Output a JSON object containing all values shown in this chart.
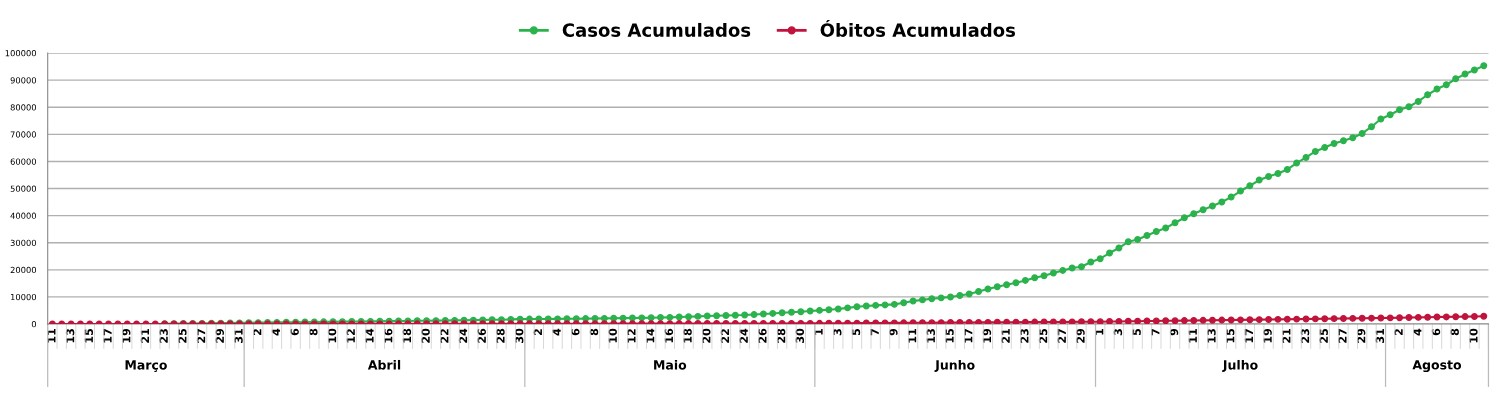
{
  "chart_data": {
    "type": "line",
    "categories": [
      "11",
      null,
      "13",
      null,
      "15",
      null,
      "17",
      null,
      "19",
      null,
      "21",
      null,
      "23",
      null,
      "25",
      null,
      "27",
      null,
      "29",
      null,
      "31",
      null,
      "2",
      null,
      "4",
      null,
      "6",
      null,
      "8",
      null,
      "10",
      null,
      "12",
      null,
      "14",
      null,
      "16",
      null,
      "18",
      null,
      "20",
      null,
      "22",
      null,
      "24",
      null,
      "26",
      null,
      "28",
      null,
      "30",
      null,
      "2",
      null,
      "4",
      null,
      "6",
      null,
      "8",
      null,
      "10",
      null,
      "12",
      null,
      "14",
      null,
      "16",
      null,
      "18",
      null,
      "20",
      null,
      "22",
      null,
      "24",
      null,
      "26",
      null,
      "28",
      null,
      "30",
      null,
      "1",
      null,
      "3",
      null,
      "5",
      null,
      "7",
      null,
      "9",
      null,
      "11",
      null,
      "13",
      null,
      "15",
      null,
      "17",
      null,
      "19",
      null,
      "21",
      null,
      "23",
      null,
      "25",
      null,
      "27",
      null,
      "29",
      null,
      "1",
      null,
      "3",
      null,
      "5",
      null,
      "7",
      null,
      "9",
      null,
      "11",
      null,
      "13",
      null,
      "15",
      null,
      "17",
      null,
      "19",
      null,
      "21",
      null,
      "23",
      null,
      "25",
      null,
      "27",
      null,
      "29",
      null,
      "31",
      null,
      "2",
      null,
      "4",
      null,
      "6",
      null,
      "8",
      null,
      "10",
      null
    ],
    "annotations": [
      "Março",
      "Abril",
      "Maio",
      "Junho",
      "Julho",
      "Agosto"
    ],
    "series": [
      {
        "name": "Casos Acumulados",
        "color": "#2bb24c",
        "values": [
          null,
          null,
          null,
          null,
          null,
          null,
          null,
          null,
          null,
          null,
          null,
          null,
          100,
          130,
          160,
          190,
          230,
          270,
          320,
          370,
          420,
          470,
          520,
          560,
          600,
          640,
          680,
          720,
          760,
          800,
          840,
          870,
          900,
          940,
          980,
          1020,
          1060,
          1100,
          1140,
          1180,
          1220,
          1260,
          1300,
          1340,
          1380,
          1440,
          1500,
          1550,
          1600,
          1700,
          1800,
          1820,
          1840,
          1870,
          1900,
          1930,
          1960,
          2000,
          2040,
          2080,
          2120,
          2160,
          2210,
          2270,
          2330,
          2390,
          2450,
          2560,
          2680,
          2810,
          2940,
          3030,
          3120,
          3210,
          3300,
          3480,
          3670,
          3910,
          4160,
          4340,
          4530,
          4780,
          5030,
          5280,
          5520,
          5950,
          6380,
          6620,
          6870,
          7050,
          7240,
          7850,
          8470,
          8900,
          9330,
          9640,
          9950,
          10500,
          11060,
          11980,
          12900,
          13760,
          14500,
          15240,
          16090,
          17080,
          17820,
          18820,
          19780,
          20660,
          21140,
          22880,
          24100,
          26200,
          28040,
          30370,
          31220,
          32690,
          34170,
          35420,
          37380,
          39220,
          40700,
          42180,
          43540,
          45020,
          46860,
          49080,
          51030,
          53140,
          54460,
          55570,
          57050,
          59410,
          61470,
          63690,
          65170,
          66640,
          67640,
          68740,
          70330,
          72800,
          75640,
          77230,
          79080,
          80180,
          82140,
          84610,
          86720,
          88300,
          90520,
          92250,
          93730,
          95310
        ]
      },
      {
        "name": "Óbitos Acumulados",
        "color": "#c0143c",
        "values": [
          0,
          0,
          0,
          0,
          0,
          0,
          0,
          0,
          0,
          1,
          1,
          1,
          2,
          2,
          3,
          4,
          5,
          6,
          8,
          10,
          12,
          14,
          16,
          19,
          22,
          25,
          28,
          31,
          34,
          37,
          40,
          43,
          46,
          49,
          52,
          55,
          58,
          61,
          64,
          67,
          70,
          73,
          76,
          79,
          82,
          85,
          88,
          91,
          94,
          97,
          100,
          103,
          106,
          109,
          112,
          115,
          118,
          121,
          124,
          127,
          130,
          133,
          136,
          140,
          144,
          148,
          152,
          156,
          160,
          165,
          170,
          175,
          180,
          185,
          190,
          196,
          202,
          208,
          214,
          220,
          227,
          234,
          250,
          270,
          290,
          310,
          330,
          350,
          370,
          390,
          410,
          430,
          450,
          470,
          490,
          510,
          530,
          550,
          570,
          590,
          610,
          630,
          650,
          670,
          690,
          710,
          730,
          750,
          770,
          790,
          810,
          830,
          860,
          905,
          950,
          995,
          1040,
          1085,
          1130,
          1175,
          1220,
          1265,
          1310,
          1355,
          1400,
          1445,
          1490,
          1535,
          1580,
          1625,
          1670,
          1715,
          1760,
          1805,
          1850,
          1895,
          1940,
          1985,
          2030,
          2075,
          2120,
          2160,
          2200,
          2260,
          2320,
          2380,
          2440,
          2500,
          2560,
          2620,
          2680,
          2740,
          2800,
          2850
        ]
      }
    ],
    "ylim": [
      0,
      100000
    ],
    "yticks": [
      0,
      10000,
      20000,
      30000,
      40000,
      50000,
      60000,
      70000,
      80000,
      90000,
      100000
    ],
    "grid": "y",
    "legend": "top",
    "marker": "circle",
    "line_style": "solid"
  }
}
